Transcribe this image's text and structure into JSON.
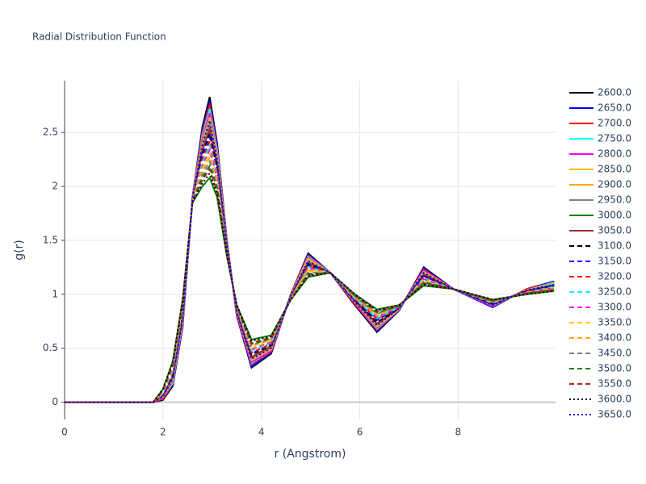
{
  "chart_data": {
    "type": "line",
    "title": "Radial Distribution Function",
    "x_label": "r (Angstrom)",
    "y_label": "g(r)",
    "xlim": [
      0,
      9.98
    ],
    "ylim": [
      -0.16,
      2.98
    ],
    "xticks": [
      0,
      2,
      4,
      6,
      8
    ],
    "yticks": [
      0,
      0.5,
      1,
      1.5,
      2,
      2.5
    ],
    "grid": true,
    "x": [
      0,
      1,
      1.8,
      2.0,
      2.2,
      2.4,
      2.6,
      2.8,
      2.95,
      3.1,
      3.3,
      3.5,
      3.8,
      4.2,
      4.6,
      4.95,
      5.4,
      5.9,
      6.35,
      6.8,
      7.3,
      7.9,
      8.7,
      9.4,
      9.95
    ],
    "series": [
      {
        "name": "2600.0",
        "color": "#000000",
        "dash": "solid",
        "values": [
          0,
          0,
          0,
          0.02,
          0.15,
          0.7,
          1.9,
          2.55,
          2.83,
          2.4,
          1.5,
          0.8,
          0.32,
          0.45,
          1,
          1.38,
          1.2,
          0.9,
          0.65,
          0.85,
          1.25,
          1.05,
          0.88,
          1.05,
          1.12
        ]
      },
      {
        "name": "2650.0",
        "color": "#0000ff",
        "dash": "solid",
        "values": [
          0,
          0,
          0,
          0.03,
          0.16,
          0.71,
          1.9,
          2.52,
          2.79,
          2.38,
          1.49,
          0.81,
          0.33,
          0.46,
          1,
          1.37,
          1.2,
          0.91,
          0.66,
          0.85,
          1.24,
          1.05,
          0.88,
          1.05,
          1.12
        ]
      },
      {
        "name": "2700.0",
        "color": "#ff0000",
        "dash": "solid",
        "values": [
          0,
          0,
          0,
          0.03,
          0.17,
          0.73,
          1.9,
          2.5,
          2.76,
          2.35,
          1.49,
          0.81,
          0.35,
          0.47,
          1,
          1.36,
          1.2,
          0.91,
          0.67,
          0.86,
          1.23,
          1.05,
          0.89,
          1.05,
          1.11
        ]
      },
      {
        "name": "2750.0",
        "color": "#00ffff",
        "dash": "solid",
        "values": [
          0,
          0,
          0,
          0.04,
          0.18,
          0.74,
          1.89,
          2.47,
          2.72,
          2.33,
          1.48,
          0.82,
          0.36,
          0.48,
          0.99,
          1.35,
          1.2,
          0.92,
          0.68,
          0.86,
          1.22,
          1.05,
          0.89,
          1.04,
          1.11
        ]
      },
      {
        "name": "2800.0",
        "color": "#ff00ff",
        "dash": "solid",
        "values": [
          0,
          0,
          0,
          0.04,
          0.2,
          0.75,
          1.89,
          2.44,
          2.68,
          2.3,
          1.47,
          0.82,
          0.37,
          0.48,
          0.99,
          1.34,
          1.2,
          0.92,
          0.69,
          0.86,
          1.22,
          1.05,
          0.89,
          1.04,
          1.1
        ]
      },
      {
        "name": "2850.0",
        "color": "#ffbf00",
        "dash": "solid",
        "values": [
          0,
          0,
          0,
          0.05,
          0.21,
          0.76,
          1.89,
          2.41,
          2.64,
          2.28,
          1.46,
          0.83,
          0.39,
          0.49,
          0.99,
          1.33,
          1.2,
          0.93,
          0.7,
          0.86,
          1.21,
          1.05,
          0.9,
          1.04,
          1.1
        ]
      },
      {
        "name": "2900.0",
        "color": "#ffa500",
        "dash": "solid",
        "values": [
          0,
          0,
          0,
          0.05,
          0.22,
          0.78,
          1.89,
          2.39,
          2.61,
          2.25,
          1.46,
          0.83,
          0.4,
          0.5,
          0.99,
          1.31,
          1.2,
          0.93,
          0.71,
          0.87,
          1.2,
          1.05,
          0.9,
          1.04,
          1.09
        ]
      },
      {
        "name": "2950.0",
        "color": "#808080",
        "dash": "solid",
        "values": [
          0,
          0,
          0,
          0.06,
          0.23,
          0.79,
          1.88,
          2.36,
          2.57,
          2.23,
          1.45,
          0.84,
          0.41,
          0.51,
          0.98,
          1.3,
          1.2,
          0.94,
          0.72,
          0.87,
          1.19,
          1.05,
          0.9,
          1.03,
          1.09
        ]
      },
      {
        "name": "3000.0",
        "color": "#008000",
        "dash": "solid",
        "values": [
          0,
          0,
          0,
          0.12,
          0.38,
          0.95,
          1.85,
          2.0,
          2.08,
          1.9,
          1.35,
          0.9,
          0.58,
          0.62,
          0.95,
          1.16,
          1.2,
          1.0,
          0.86,
          0.9,
          1.08,
          1.05,
          0.95,
          1.0,
          1.03
        ]
      },
      {
        "name": "3050.0",
        "color": "#a52a2a",
        "dash": "solid",
        "values": [
          0,
          0,
          0,
          0.06,
          0.24,
          0.8,
          1.88,
          2.33,
          2.53,
          2.2,
          1.44,
          0.84,
          0.42,
          0.52,
          0.98,
          1.29,
          1.2,
          0.94,
          0.73,
          0.87,
          1.18,
          1.05,
          0.91,
          1.03,
          1.08
        ]
      },
      {
        "name": "3100.0",
        "color": "#000000",
        "dash": "dash",
        "values": [
          0,
          0,
          0,
          0.07,
          0.25,
          0.81,
          1.88,
          2.3,
          2.49,
          2.18,
          1.43,
          0.85,
          0.44,
          0.53,
          0.98,
          1.28,
          1.2,
          0.95,
          0.74,
          0.87,
          1.17,
          1.05,
          0.91,
          1.03,
          1.08
        ]
      },
      {
        "name": "3150.0",
        "color": "#0000ff",
        "dash": "dash",
        "values": [
          0,
          0,
          0,
          0.07,
          0.27,
          0.83,
          1.88,
          2.28,
          2.46,
          2.15,
          1.43,
          0.85,
          0.45,
          0.54,
          0.98,
          1.27,
          1.2,
          0.95,
          0.76,
          0.88,
          1.17,
          1.05,
          0.92,
          1.03,
          1.08
        ]
      },
      {
        "name": "3200.0",
        "color": "#ff0000",
        "dash": "dash",
        "values": [
          0,
          0,
          0,
          0.08,
          0.28,
          0.84,
          1.87,
          2.25,
          2.42,
          2.13,
          1.42,
          0.86,
          0.46,
          0.54,
          0.97,
          1.26,
          1.2,
          0.96,
          0.77,
          0.88,
          1.16,
          1.05,
          0.92,
          1.02,
          1.07
        ]
      },
      {
        "name": "3250.0",
        "color": "#00ffff",
        "dash": "dash",
        "values": [
          0,
          0,
          0,
          0.08,
          0.29,
          0.85,
          1.87,
          2.22,
          2.38,
          2.1,
          1.41,
          0.86,
          0.48,
          0.55,
          0.97,
          1.25,
          1.2,
          0.96,
          0.78,
          0.88,
          1.15,
          1.05,
          0.92,
          1.02,
          1.07
        ]
      },
      {
        "name": "3300.0",
        "color": "#ff00ff",
        "dash": "dash",
        "values": [
          0,
          0,
          0,
          0.09,
          0.3,
          0.86,
          1.87,
          2.19,
          2.34,
          2.08,
          1.4,
          0.87,
          0.49,
          0.56,
          0.97,
          1.24,
          1.2,
          0.97,
          0.79,
          0.88,
          1.14,
          1.05,
          0.93,
          1.02,
          1.06
        ]
      },
      {
        "name": "3350.0",
        "color": "#ffbf00",
        "dash": "dash",
        "values": [
          0,
          0,
          0,
          0.09,
          0.31,
          0.88,
          1.87,
          2.17,
          2.31,
          2.05,
          1.4,
          0.87,
          0.5,
          0.57,
          0.97,
          1.23,
          1.2,
          0.97,
          0.8,
          0.89,
          1.13,
          1.05,
          0.93,
          1.02,
          1.06
        ]
      },
      {
        "name": "3400.0",
        "color": "#ffa500",
        "dash": "dash",
        "values": [
          0,
          0,
          0,
          0.1,
          0.32,
          0.89,
          1.86,
          2.14,
          2.27,
          2.03,
          1.39,
          0.88,
          0.52,
          0.58,
          0.96,
          1.22,
          1.2,
          0.98,
          0.81,
          0.89,
          1.12,
          1.05,
          0.93,
          1.01,
          1.05
        ]
      },
      {
        "name": "3450.0",
        "color": "#808080",
        "dash": "dash",
        "values": [
          0,
          0,
          0,
          0.1,
          0.33,
          0.9,
          1.86,
          2.11,
          2.23,
          2.0,
          1.38,
          0.88,
          0.53,
          0.59,
          0.96,
          1.2,
          1.2,
          0.98,
          0.82,
          0.89,
          1.11,
          1.05,
          0.94,
          1.01,
          1.05
        ]
      },
      {
        "name": "3500.0",
        "color": "#008000",
        "dash": "dash",
        "values": [
          0,
          0,
          0,
          0.11,
          0.35,
          0.91,
          1.86,
          2.08,
          2.19,
          1.98,
          1.37,
          0.89,
          0.54,
          0.59,
          0.96,
          1.19,
          1.2,
          0.99,
          0.83,
          0.89,
          1.11,
          1.05,
          0.94,
          1.01,
          1.04
        ]
      },
      {
        "name": "3550.0",
        "color": "#a52a2a",
        "dash": "dash",
        "values": [
          0,
          0,
          0,
          0.11,
          0.36,
          0.93,
          1.86,
          2.06,
          2.16,
          1.95,
          1.37,
          0.89,
          0.55,
          0.6,
          0.96,
          1.18,
          1.2,
          0.99,
          0.84,
          0.9,
          1.1,
          1.05,
          0.94,
          1.01,
          1.04
        ]
      },
      {
        "name": "3600.0",
        "color": "#000000",
        "dash": "dot",
        "values": [
          0,
          0,
          0,
          0.12,
          0.37,
          0.94,
          1.85,
          2.03,
          2.12,
          1.93,
          1.36,
          0.9,
          0.57,
          0.61,
          0.95,
          1.17,
          1.2,
          1.0,
          0.85,
          0.9,
          1.09,
          1.05,
          0.95,
          1.0,
          1.03
        ]
      },
      {
        "name": "3650.0",
        "color": "#0000ff",
        "dash": "dot",
        "values": [
          0,
          0,
          0,
          0.05,
          0.22,
          0.78,
          1.89,
          2.39,
          2.61,
          2.25,
          1.46,
          0.83,
          0.4,
          0.5,
          0.99,
          1.31,
          1.2,
          0.93,
          0.71,
          0.87,
          1.2,
          1.05,
          0.9,
          1.04,
          1.09
        ]
      }
    ]
  }
}
